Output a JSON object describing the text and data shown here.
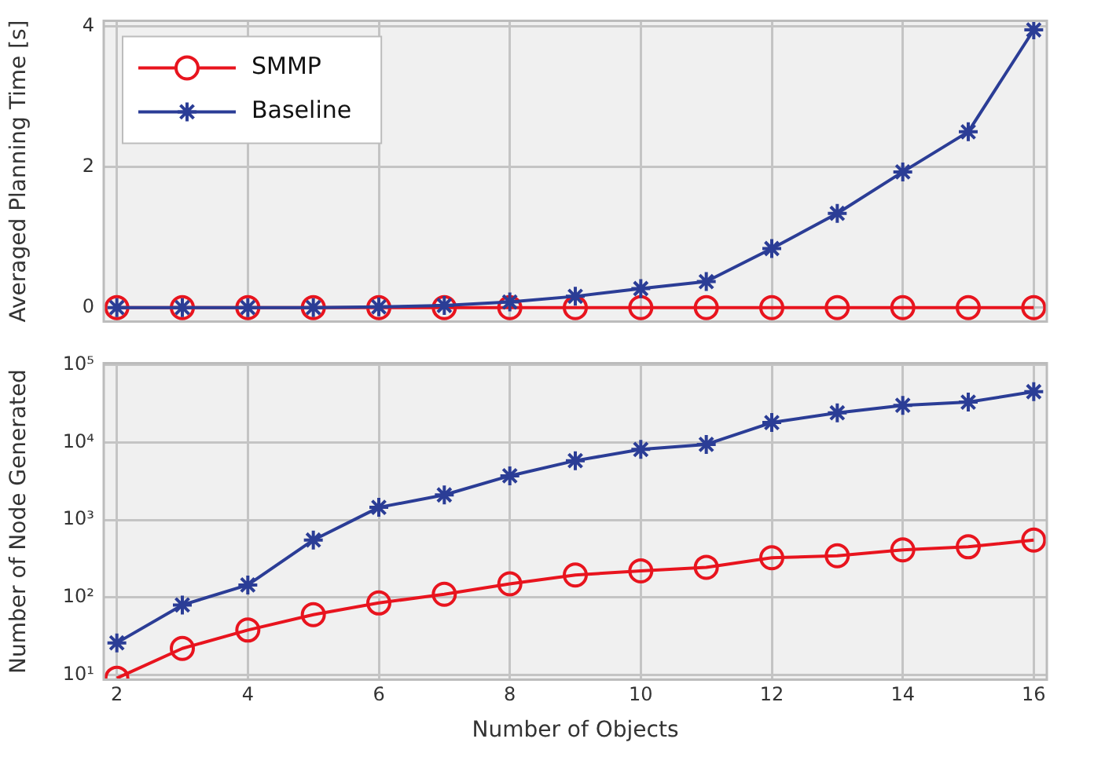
{
  "chart_data": [
    {
      "type": "line",
      "ylabel": "Averaged Planning Time [s]",
      "x": [
        2,
        3,
        4,
        5,
        6,
        7,
        8,
        9,
        10,
        11,
        12,
        13,
        14,
        15,
        16
      ],
      "xlim": [
        1.8,
        16.2
      ],
      "xticks": [
        2,
        4,
        6,
        8,
        10,
        12,
        14,
        16
      ],
      "ylim": [
        -0.2,
        4.08
      ],
      "yticks": [
        0,
        2,
        4
      ],
      "grid": true,
      "legend": "top left",
      "tick_labels": "y",
      "series": [
        {
          "name": "SMMP",
          "color": "#e8141e",
          "marker": "circle",
          "values": [
            0,
            0,
            0,
            0,
            0,
            0,
            0,
            0,
            0,
            0,
            0,
            0,
            0,
            0,
            0
          ]
        },
        {
          "name": "Baseline",
          "color": "#2b3d96",
          "marker": "cross",
          "values": [
            0,
            0,
            0,
            0,
            0.01,
            0.03,
            0.08,
            0.16,
            0.27,
            0.37,
            0.84,
            1.34,
            1.93,
            2.5,
            3.95
          ]
        }
      ]
    },
    {
      "type": "line",
      "ylabel": "Number of Node Generated",
      "xlabel": "Number of Objects",
      "x": [
        2,
        3,
        4,
        5,
        6,
        7,
        8,
        9,
        10,
        11,
        12,
        13,
        14,
        15,
        16
      ],
      "xlim": [
        1.8,
        16.2
      ],
      "xticks": [
        2,
        4,
        6,
        8,
        10,
        12,
        14,
        16
      ],
      "log": true,
      "ylim": [
        8.7,
        105000
      ],
      "yticks": [
        {
          "value": 10,
          "label": "10¹"
        },
        {
          "value": 100,
          "label": "10²"
        },
        {
          "value": 1000,
          "label": "10³"
        },
        {
          "value": 10000,
          "label": "10⁴"
        },
        {
          "value": 100000,
          "label": "10⁵"
        }
      ],
      "grid": true,
      "series": [
        {
          "color": "#e8141e",
          "marker": "circle",
          "values": [
            9.1,
            22,
            38,
            60,
            85,
            110,
            150,
            195,
            220,
            245,
            325,
            345,
            410,
            450,
            550
          ]
        },
        {
          "color": "#2b3d96",
          "marker": "cross",
          "values": [
            26,
            80,
            145,
            550,
            1450,
            2100,
            3700,
            5800,
            8100,
            9400,
            18000,
            24000,
            30000,
            33000,
            45000
          ]
        }
      ]
    }
  ]
}
